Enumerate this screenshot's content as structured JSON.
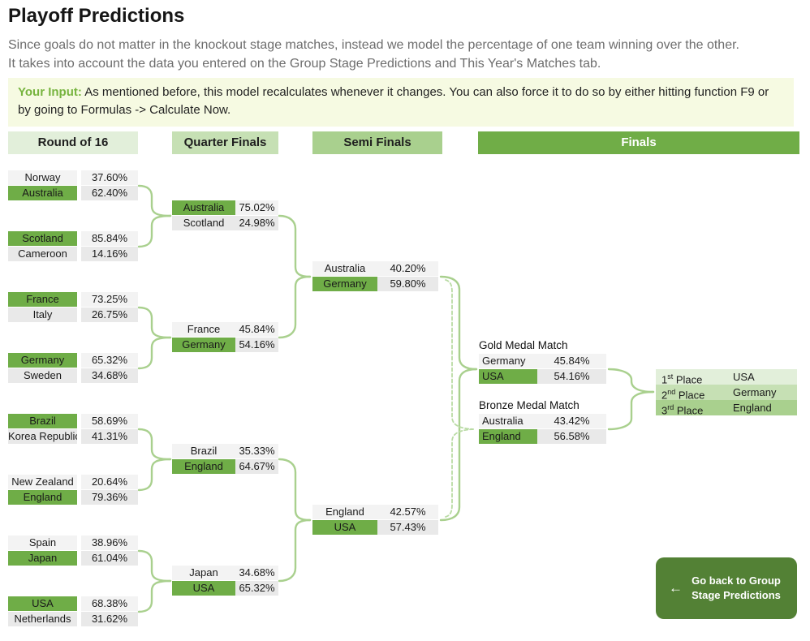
{
  "page": {
    "title": "Playoff Predictions",
    "description": [
      "Since goals do not matter in the knockout stage matches, instead we model the percentage of one team winning over the other.",
      "It takes into account the data you entered on the Group Stage Predictions and This Year's Matches tab."
    ],
    "input_note": {
      "label": "Your Input:",
      "text": "As mentioned before, this model recalculates whenever it changes. You can also force it to do so by either hitting function F9 or by going to Formulas -> Calculate Now."
    }
  },
  "colors": {
    "winner_green": "#6FAD47",
    "header_round16": "#E2EFDA",
    "header_quarter": "#C6E0B4",
    "header_semi": "#A9D08E",
    "header_finals": "#70AD47",
    "connector": "#A9D08E",
    "input_note_bg": "#F6FAE2",
    "input_label_green": "#77B43F",
    "button_green": "#538135",
    "row_light": "#F3F3F3",
    "row_dark": "#E9E9E9",
    "podium_first": "#E2EFDA",
    "podium_second": "#C6E0B4",
    "podium_third": "#A9D08E"
  },
  "round_headers": [
    "Round of 16",
    "Quarter Finals",
    "Semi Finals",
    "Finals"
  ],
  "bracket": {
    "round_of_16": [
      {
        "teams": [
          {
            "name": "Norway",
            "pct": "37.60%",
            "winner": false
          },
          {
            "name": "Australia",
            "pct": "62.40%",
            "winner": true
          }
        ]
      },
      {
        "teams": [
          {
            "name": "Scotland",
            "pct": "85.84%",
            "winner": true
          },
          {
            "name": "Cameroon",
            "pct": "14.16%",
            "winner": false
          }
        ]
      },
      {
        "teams": [
          {
            "name": "France",
            "pct": "73.25%",
            "winner": true
          },
          {
            "name": "Italy",
            "pct": "26.75%",
            "winner": false
          }
        ]
      },
      {
        "teams": [
          {
            "name": "Germany",
            "pct": "65.32%",
            "winner": true
          },
          {
            "name": "Sweden",
            "pct": "34.68%",
            "winner": false
          }
        ]
      },
      {
        "teams": [
          {
            "name": "Brazil",
            "pct": "58.69%",
            "winner": true
          },
          {
            "name": "Korea Republic",
            "pct": "41.31%",
            "winner": false
          }
        ]
      },
      {
        "teams": [
          {
            "name": "New Zealand",
            "pct": "20.64%",
            "winner": false
          },
          {
            "name": "England",
            "pct": "79.36%",
            "winner": true
          }
        ]
      },
      {
        "teams": [
          {
            "name": "Spain",
            "pct": "38.96%",
            "winner": false
          },
          {
            "name": "Japan",
            "pct": "61.04%",
            "winner": true
          }
        ]
      },
      {
        "teams": [
          {
            "name": "USA",
            "pct": "68.38%",
            "winner": true
          },
          {
            "name": "Netherlands",
            "pct": "31.62%",
            "winner": false
          }
        ]
      }
    ],
    "quarter_finals": [
      {
        "teams": [
          {
            "name": "Australia",
            "pct": "75.02%",
            "winner": true
          },
          {
            "name": "Scotland",
            "pct": "24.98%",
            "winner": false
          }
        ]
      },
      {
        "teams": [
          {
            "name": "France",
            "pct": "45.84%",
            "winner": false
          },
          {
            "name": "Germany",
            "pct": "54.16%",
            "winner": true
          }
        ]
      },
      {
        "teams": [
          {
            "name": "Brazil",
            "pct": "35.33%",
            "winner": false
          },
          {
            "name": "England",
            "pct": "64.67%",
            "winner": true
          }
        ]
      },
      {
        "teams": [
          {
            "name": "Japan",
            "pct": "34.68%",
            "winner": false
          },
          {
            "name": "USA",
            "pct": "65.32%",
            "winner": true
          }
        ]
      }
    ],
    "semi_finals": [
      {
        "teams": [
          {
            "name": "Australia",
            "pct": "40.20%",
            "winner": false
          },
          {
            "name": "Germany",
            "pct": "59.80%",
            "winner": true
          }
        ]
      },
      {
        "teams": [
          {
            "name": "England",
            "pct": "42.57%",
            "winner": false
          },
          {
            "name": "USA",
            "pct": "57.43%",
            "winner": true
          }
        ]
      }
    ],
    "finals": [
      {
        "title": "Gold Medal Match",
        "teams": [
          {
            "name": "Germany",
            "pct": "45.84%",
            "winner": false
          },
          {
            "name": "USA",
            "pct": "54.16%",
            "winner": true
          }
        ]
      },
      {
        "title": "Bronze Medal Match",
        "teams": [
          {
            "name": "Australia",
            "pct": "43.42%",
            "winner": false
          },
          {
            "name": "England",
            "pct": "56.58%",
            "winner": true
          }
        ]
      }
    ]
  },
  "podium": [
    {
      "place": "1",
      "suffix": "st",
      "label": "Place",
      "team": "USA"
    },
    {
      "place": "2",
      "suffix": "nd",
      "label": "Place",
      "team": "Germany"
    },
    {
      "place": "3",
      "suffix": "rd",
      "label": "Place",
      "team": "England"
    }
  ],
  "back_button": {
    "icon": "left-arrow",
    "icon_glyph": "←",
    "label": "Go back to Group Stage Predictions"
  }
}
